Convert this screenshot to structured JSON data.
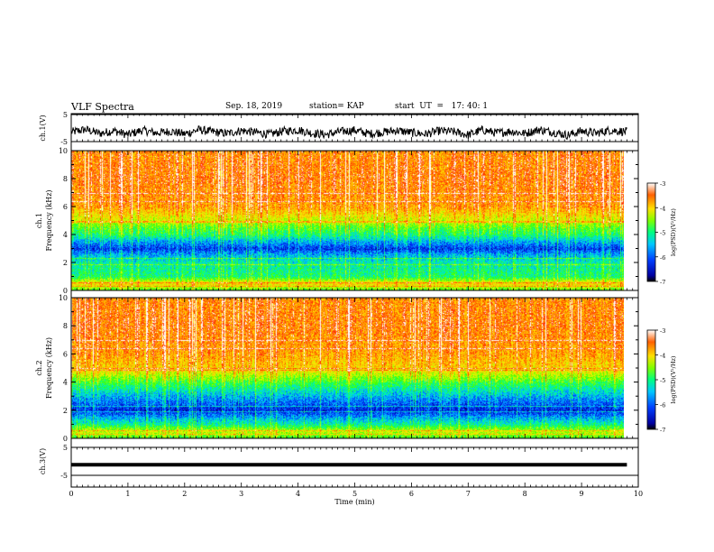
{
  "header": {
    "title": "VLF Spectra",
    "date": "Sep. 18, 2019",
    "station": "station= KAP",
    "start": "start  UT  =   17: 40: 1"
  },
  "chart_data": [
    {
      "type": "line",
      "panel": "ch1-waveform",
      "ylabel": "ch.1(V)",
      "ylim": [
        -5,
        5
      ],
      "yticks": [
        "5",
        "-5"
      ],
      "xlim": [
        0,
        10
      ],
      "x": [
        0,
        0.25,
        0.5,
        0.75,
        1.0,
        1.25,
        1.5,
        1.75,
        2.0,
        2.25,
        2.5,
        2.75,
        3.0,
        3.25,
        3.5,
        3.75,
        4.0,
        4.25,
        4.5,
        4.75,
        5.0,
        5.25,
        5.5,
        5.75,
        6.0,
        6.25,
        6.5,
        6.75,
        7.0,
        7.25,
        7.5,
        7.75,
        8.0,
        8.25,
        8.5,
        8.75,
        9.0,
        9.25,
        9.5,
        9.75
      ],
      "values": [
        -1.5,
        -0.5,
        -2.0,
        -1.0,
        -2.5,
        -0.8,
        -1.8,
        -1.2,
        -2.2,
        -0.6,
        -1.4,
        -2.0,
        -0.9,
        -1.6,
        -2.3,
        -1.1,
        -0.7,
        -1.9,
        -2.4,
        -1.3,
        -0.8,
        -2.1,
        -1.5,
        -0.9,
        -1.7,
        -2.2,
        -1.0,
        -1.4,
        -2.5,
        -0.7,
        -1.8,
        -1.2,
        -2.0,
        -0.6,
        -1.5,
        -2.6,
        -1.1,
        -1.9,
        -0.8,
        -1.3
      ]
    },
    {
      "type": "heatmap",
      "panel": "ch1-spectrogram",
      "ylabel": "ch.1\nFrequency (kHz)",
      "ylim": [
        0,
        10
      ],
      "yticks": [
        "0",
        "2",
        "4",
        "6",
        "8",
        "10"
      ],
      "xlim": [
        0,
        10
      ],
      "colorbar": {
        "label": "log(PSD)(V²/Hz)",
        "range": [
          -7,
          -3
        ],
        "ticks": [
          "-3",
          "-4",
          "-5",
          "-6",
          "-7"
        ]
      },
      "level_by_frequency_khz": [
        [
          0.0,
          -5.0
        ],
        [
          0.5,
          -4.0
        ],
        [
          1.0,
          -5.2
        ],
        [
          2.0,
          -5.4
        ],
        [
          2.6,
          -5.8
        ],
        [
          3.0,
          -6.3
        ],
        [
          3.5,
          -5.8
        ],
        [
          4.0,
          -5.2
        ],
        [
          4.5,
          -4.9
        ],
        [
          5.0,
          -4.4
        ],
        [
          6.0,
          -3.7
        ],
        [
          7.0,
          -3.6
        ],
        [
          8.0,
          -3.5
        ],
        [
          10.0,
          -3.6
        ]
      ]
    },
    {
      "type": "heatmap",
      "panel": "ch2-spectrogram",
      "ylabel": "ch.2\nFrequency (kHz)",
      "ylim": [
        0,
        10
      ],
      "yticks": [
        "0",
        "2",
        "4",
        "6",
        "8",
        "10"
      ],
      "xlim": [
        0,
        10
      ],
      "colorbar": {
        "label": "log(PSD)(V²/Hz)",
        "range": [
          -7,
          -3
        ],
        "ticks": [
          "-3",
          "-4",
          "-5",
          "-6",
          "-7"
        ]
      },
      "level_by_frequency_khz": [
        [
          0.0,
          -5.0
        ],
        [
          0.5,
          -4.4
        ],
        [
          1.0,
          -5.3
        ],
        [
          1.5,
          -5.8
        ],
        [
          2.0,
          -6.4
        ],
        [
          2.8,
          -5.9
        ],
        [
          3.5,
          -5.4
        ],
        [
          4.0,
          -5.0
        ],
        [
          4.5,
          -4.5
        ],
        [
          5.0,
          -4.0
        ],
        [
          6.0,
          -3.7
        ],
        [
          7.0,
          -3.6
        ],
        [
          8.0,
          -3.5
        ],
        [
          10.0,
          -3.6
        ]
      ]
    },
    {
      "type": "line",
      "panel": "ch3-waveform",
      "ylabel": "ch.3(V)",
      "ylim": [
        -5,
        5
      ],
      "yticks": [
        "5",
        "-5"
      ],
      "xlim": [
        0,
        10
      ],
      "x": [
        0,
        9.8
      ],
      "values": [
        -1.2,
        -1.2
      ]
    }
  ],
  "xaxis": {
    "label": "Time  (min)",
    "ticks": [
      "0",
      "1",
      "2",
      "3",
      "4",
      "5",
      "6",
      "7",
      "8",
      "9",
      "10"
    ]
  },
  "colors": {
    "colormap": [
      "#0000a0",
      "#0030ff",
      "#00b8ff",
      "#00ffb0",
      "#30ff30",
      "#c8ff00",
      "#ffe000",
      "#ff8000",
      "#ff2000"
    ]
  }
}
